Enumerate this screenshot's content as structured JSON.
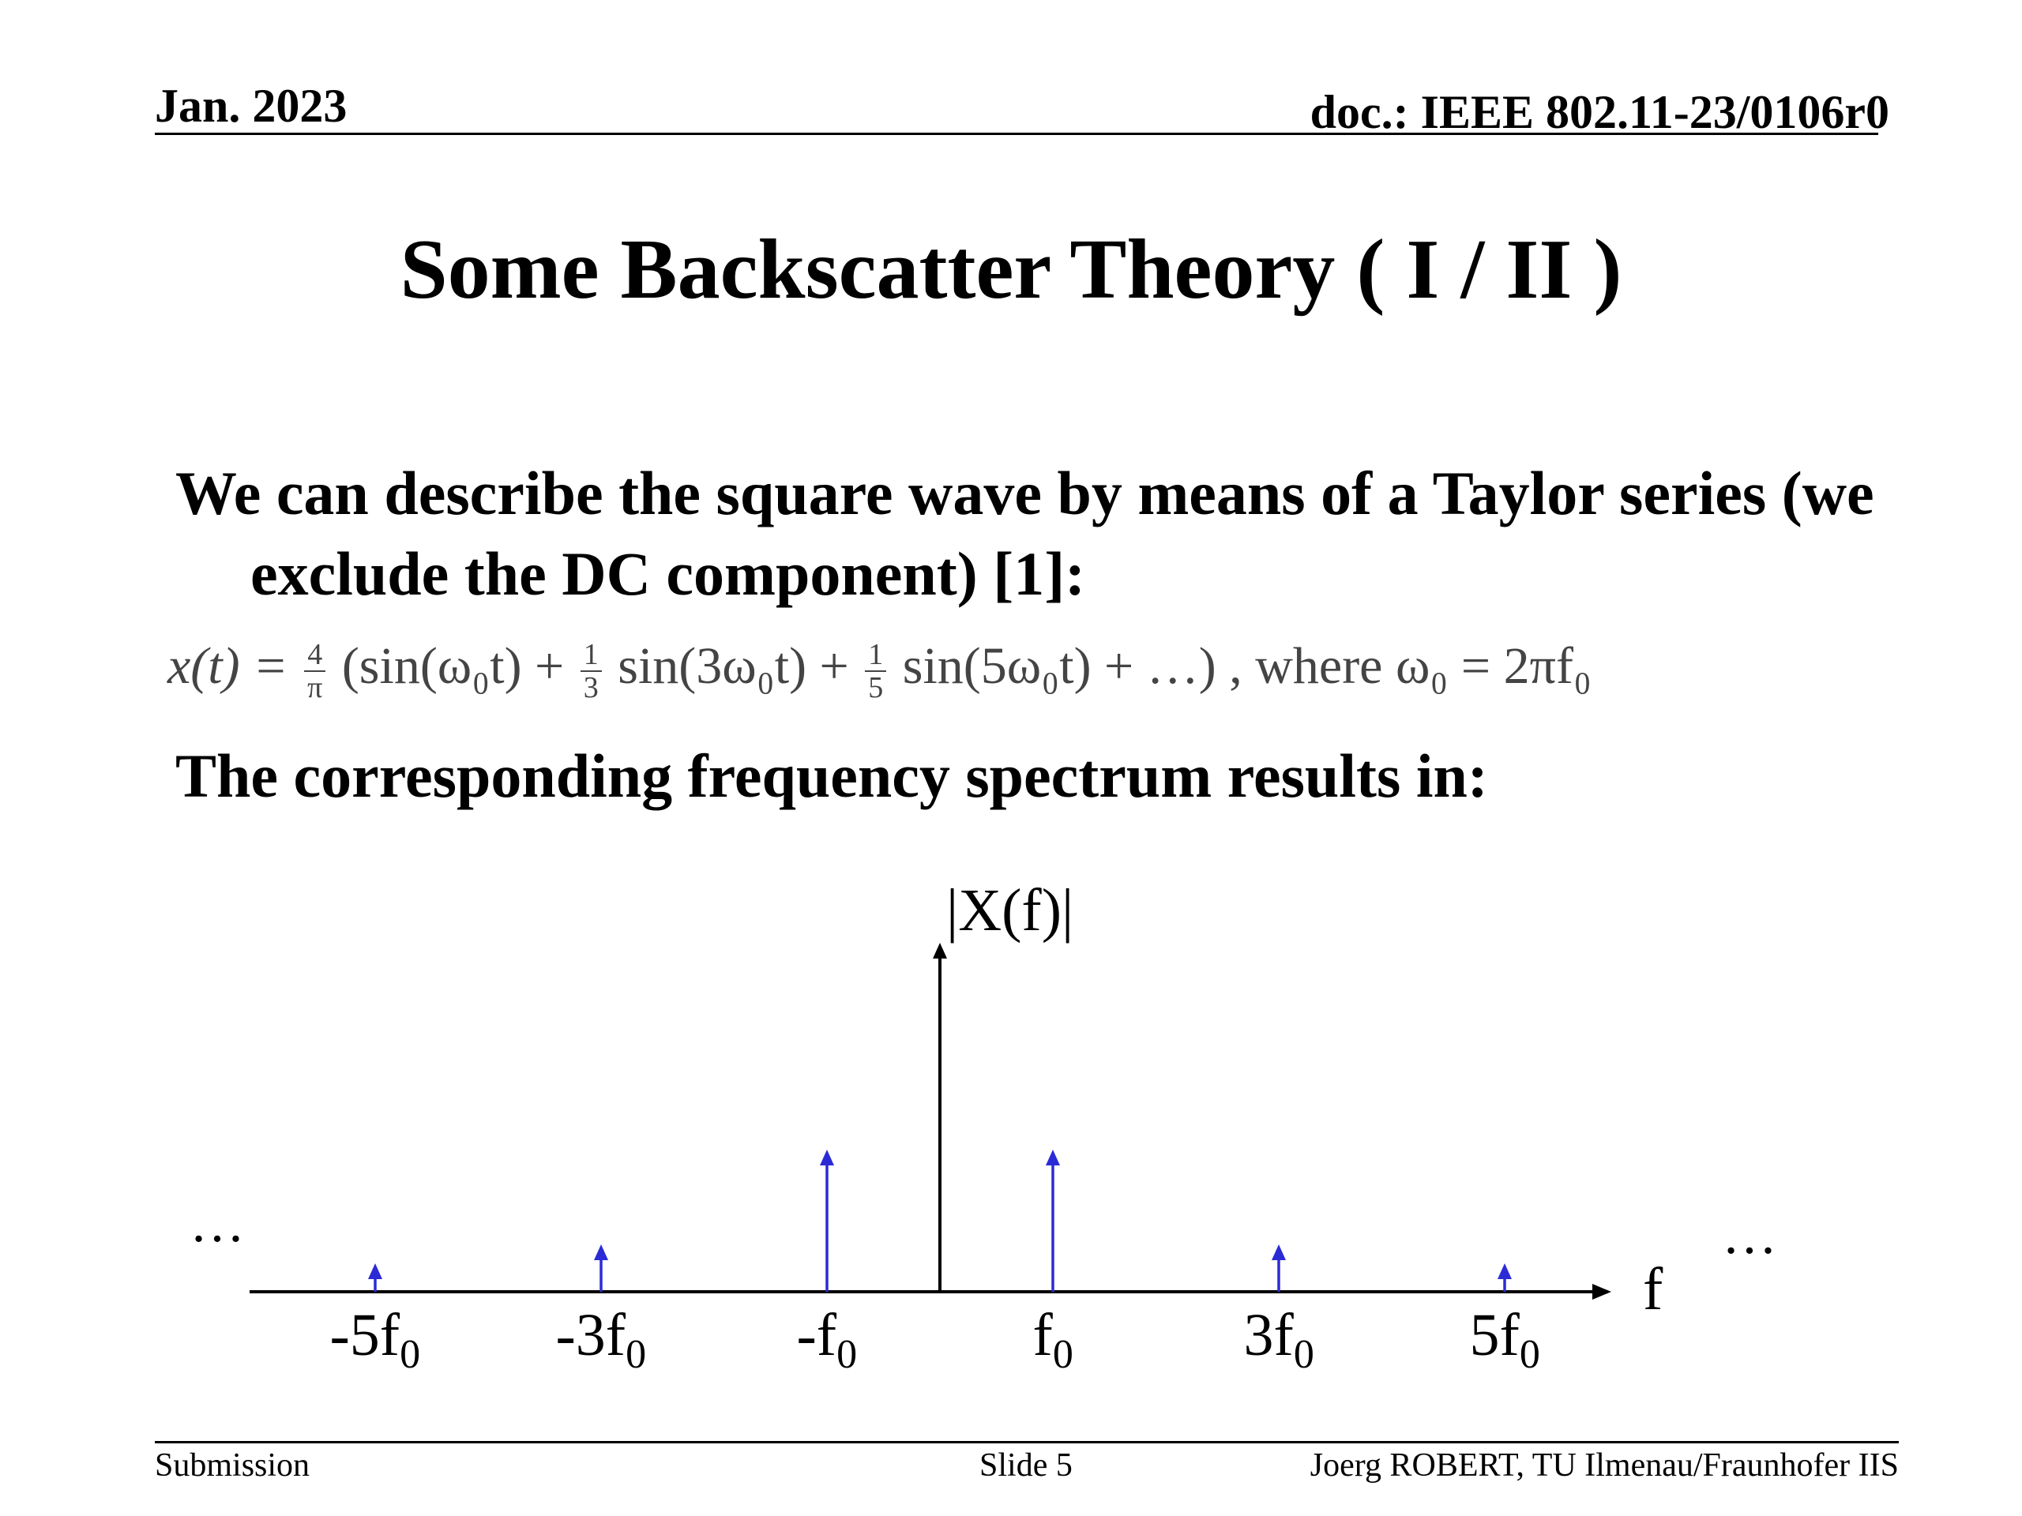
{
  "header": {
    "date": "Jan. 2023",
    "doc": "doc.: IEEE 802.11-23/0106r0"
  },
  "title": "Some Backscatter Theory ( I / II )",
  "bullets": [
    "We can describe the square wave by means of a Taylor series (we exclude the DC component) [1]:",
    "The corresponding frequency spectrum results in:"
  ],
  "formula": {
    "lhs": "x(t) = ",
    "frac1_num": "4",
    "frac1_den": "π",
    "part1": "(sin(ω₀t) + ",
    "frac2_num": "1",
    "frac2_den": "3",
    "part2": "sin(3ω₀t) + ",
    "frac3_num": "1",
    "frac3_den": "5",
    "part3": "sin(5ω₀t) + …)",
    "where": " , where ω₀ = 2πf₀"
  },
  "spectrum": {
    "y_label": "|X(f)|",
    "x_label": "f",
    "ellipsis": "…",
    "arrow_color": "#2b2bd6",
    "ticks": [
      {
        "label": "-5f",
        "sub": "0",
        "value": -5,
        "magnitude": 0.2
      },
      {
        "label": "-3f",
        "sub": "0",
        "value": -3,
        "magnitude": 0.333
      },
      {
        "label": "-f",
        "sub": "0",
        "value": -1,
        "magnitude": 1.0
      },
      {
        "label": "f",
        "sub": "0",
        "value": 1,
        "magnitude": 1.0
      },
      {
        "label": "3f",
        "sub": "0",
        "value": 3,
        "magnitude": 0.333
      },
      {
        "label": "5f",
        "sub": "0",
        "value": 5,
        "magnitude": 0.2
      }
    ]
  },
  "footer": {
    "left": "Submission",
    "center": "Slide 5",
    "right": "Joerg ROBERT, TU Ilmenau/Fraunhofer IIS"
  }
}
